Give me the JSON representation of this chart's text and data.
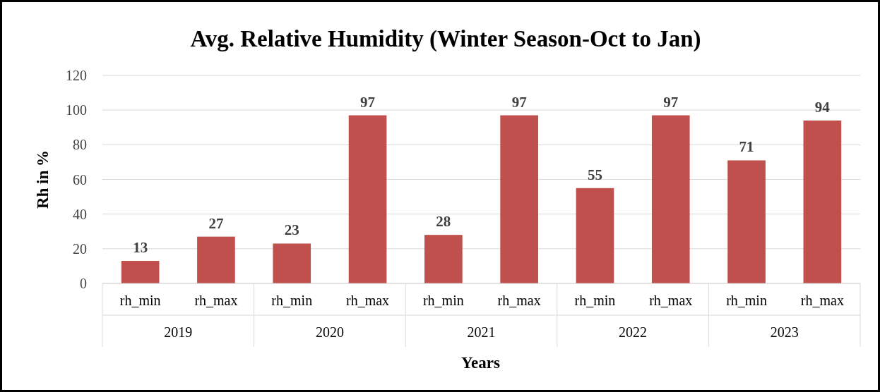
{
  "chart_data": {
    "type": "bar",
    "title": "Avg. Relative Humidity (Winter Season-Oct to Jan)",
    "xlabel": "Years",
    "ylabel": "Rh in %",
    "categories": [
      "rh_min",
      "rh_max",
      "rh_min",
      "rh_max",
      "rh_min",
      "rh_max",
      "rh_min",
      "rh_max",
      "rh_min",
      "rh_max"
    ],
    "values": [
      13,
      27,
      23,
      97,
      28,
      97,
      55,
      97,
      71,
      94
    ],
    "color": "#c0504d",
    "data_labels": true,
    "annotations": [
      "2019",
      "2020",
      "2021",
      "2022",
      "2023"
    ],
    "ylim": [
      0,
      120
    ],
    "yticks": [
      0,
      20,
      40,
      60,
      80,
      100,
      120
    ],
    "grid": "y"
  }
}
